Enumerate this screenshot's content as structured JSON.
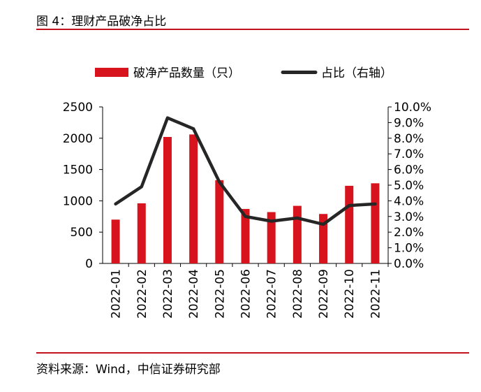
{
  "figure": {
    "title": "图 4：理财产品破净占比",
    "source": "资料来源：Wind，中信证券研究部"
  },
  "colors": {
    "bar": "#d7141e",
    "line": "#262626",
    "rule": "#c0121b"
  },
  "chart_data": {
    "type": "bar",
    "categories": [
      "2022-01",
      "2022-02",
      "2022-03",
      "2022-04",
      "2022-05",
      "2022-06",
      "2022-07",
      "2022-08",
      "2022-09",
      "2022-10",
      "2022-11"
    ],
    "series": [
      {
        "name": "破净产品数量（只）",
        "type": "bar",
        "axis": "left",
        "values": [
          700,
          960,
          2020,
          2060,
          1330,
          870,
          820,
          920,
          790,
          1240,
          1280
        ]
      },
      {
        "name": "占比（右轴）",
        "type": "line",
        "axis": "right",
        "values": [
          3.8,
          4.9,
          9.3,
          8.6,
          5.2,
          3.0,
          2.7,
          2.9,
          2.5,
          3.7,
          3.8
        ]
      }
    ],
    "y_left": {
      "min": 0,
      "max": 2500,
      "ticks": [
        "0",
        "500",
        "1000",
        "1500",
        "2000",
        "2500"
      ]
    },
    "y_right": {
      "min": 0,
      "max": 10,
      "ticks": [
        "0.0%",
        "1.0%",
        "2.0%",
        "3.0%",
        "4.0%",
        "5.0%",
        "6.0%",
        "7.0%",
        "8.0%",
        "9.0%",
        "10.0%"
      ]
    },
    "legend_placement": "top",
    "grid": false
  }
}
